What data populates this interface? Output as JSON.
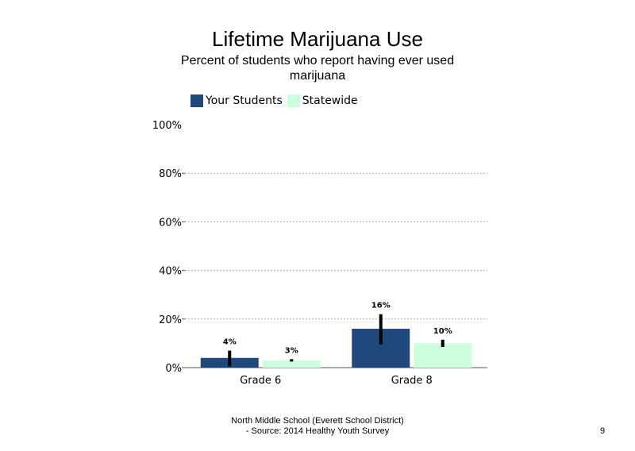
{
  "chart_data": {
    "type": "bar",
    "title": "Lifetime Marijuana Use",
    "subtitle": "Percent of students  who report having ever used marijuana",
    "categories": [
      "Grade 6",
      "Grade 8"
    ],
    "series": [
      {
        "name": "Your Students",
        "color": "#1f497d",
        "values": [
          4,
          16
        ],
        "labels": [
          "4%",
          "16%"
        ],
        "error_low": [
          0.5,
          9.5
        ],
        "error_high": [
          7,
          22
        ]
      },
      {
        "name": "Statewide",
        "color": "#ccffdd",
        "values": [
          3,
          10
        ],
        "labels": [
          "3%",
          "10%"
        ],
        "error_low": [
          2.5,
          8.5
        ],
        "error_high": [
          3.5,
          11.5
        ]
      }
    ],
    "ylim": [
      0,
      100
    ],
    "yticks": [
      "0%",
      "20%",
      "40%",
      "60%",
      "80%",
      "100%"
    ],
    "ytick_values": [
      0,
      20,
      40,
      60,
      80,
      100
    ],
    "grid": true,
    "legend_position": "top-left"
  },
  "footer": {
    "line1": "North Middle School (Everett School District)",
    "line2": "- Source: 2014 Healthy  Youth Survey"
  },
  "page_number": "9"
}
